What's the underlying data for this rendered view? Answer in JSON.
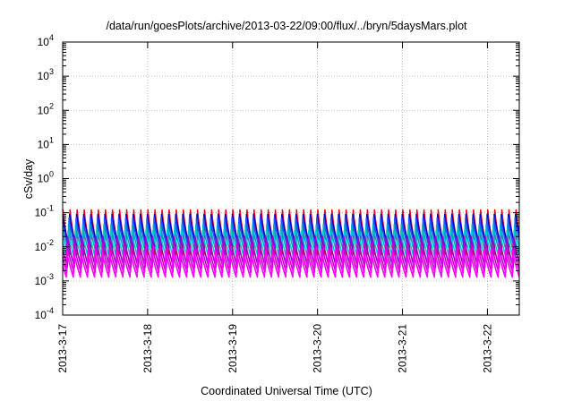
{
  "chart_data": {
    "type": "line",
    "title": "/data/run/goesPlots/archive/2013-03-22/09:00/flux/../bryn/5daysMars.plot",
    "xlabel": "Coordinated Universal Time (UTC)",
    "ylabel": "cSv/day",
    "yscale": "log",
    "ylim": [
      0.0001,
      10000
    ],
    "y_ticks": [
      {
        "value": 0.0001,
        "base": "10",
        "exp": "-4"
      },
      {
        "value": 0.001,
        "base": "10",
        "exp": "-3"
      },
      {
        "value": 0.01,
        "base": "10",
        "exp": "-2"
      },
      {
        "value": 0.1,
        "base": "10",
        "exp": "-1"
      },
      {
        "value": 1,
        "base": "10",
        "exp": "0"
      },
      {
        "value": 10,
        "base": "10",
        "exp": "1"
      },
      {
        "value": 100,
        "base": "10",
        "exp": "2"
      },
      {
        "value": 1000,
        "base": "10",
        "exp": "3"
      },
      {
        "value": 10000,
        "base": "10",
        "exp": "4"
      }
    ],
    "xlim": [
      "2013-03-17 00:00",
      "2013-03-22 09:00"
    ],
    "x_ticks": [
      "2013-3-17",
      "2013-3-18",
      "2013-3-19",
      "2013-3-20",
      "2013-3-21",
      "2013-3-22"
    ],
    "grid": true,
    "oscillation_period_hours": 2,
    "series": [
      {
        "color": "#ff0000",
        "peak": 0.12,
        "trough": 0.006
      },
      {
        "color": "#0000cc",
        "peak": 0.09,
        "trough": 0.01
      },
      {
        "color": "#2255ff",
        "peak": 0.07,
        "trough": 0.008
      },
      {
        "color": "#00aacc",
        "peak": 0.045,
        "trough": 0.006
      },
      {
        "color": "#00cccc",
        "peak": 0.03,
        "trough": 0.004
      },
      {
        "color": "#9900cc",
        "peak": 0.02,
        "trough": 0.0025
      },
      {
        "color": "#cc00cc",
        "peak": 0.012,
        "trough": 0.0018
      },
      {
        "color": "#ff00ff",
        "peak": 0.008,
        "trough": 0.0013
      }
    ]
  }
}
